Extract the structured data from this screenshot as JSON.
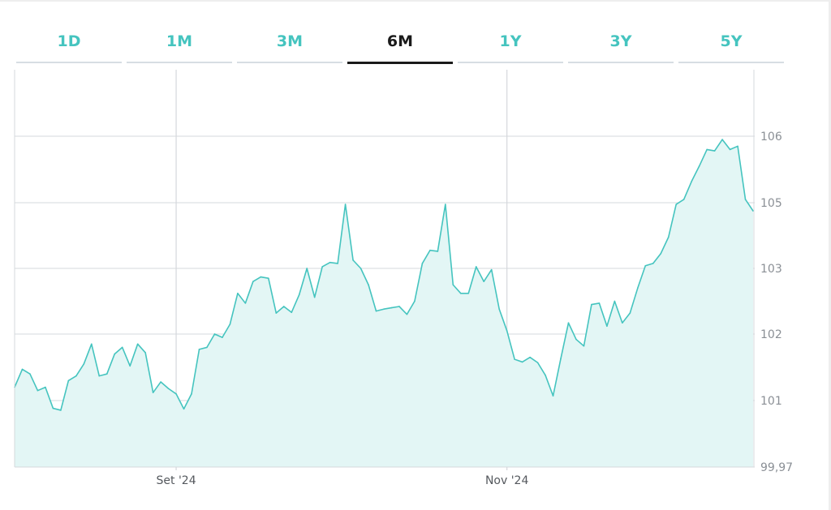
{
  "range_tabs": [
    {
      "label": "1D",
      "active": false
    },
    {
      "label": "1M",
      "active": false
    },
    {
      "label": "3M",
      "active": false
    },
    {
      "label": "6M",
      "active": true
    },
    {
      "label": "1Y",
      "active": false
    },
    {
      "label": "3Y",
      "active": false
    },
    {
      "label": "5Y",
      "active": false
    }
  ],
  "colors": {
    "accent": "#45c4bf",
    "line": "#45c4bf",
    "area_fill": "#e3f6f5",
    "grid": "#d5d8dc",
    "active_tab": "#1a1a1a"
  },
  "chart_data": {
    "type": "area",
    "title": "",
    "xlabel": "",
    "ylabel": "",
    "grid": true,
    "y_axis_side": "right",
    "y_ticks": [
      {
        "value": 99.97,
        "label": "99,97"
      },
      {
        "value": 101,
        "label": "101"
      },
      {
        "value": 102,
        "label": "102"
      },
      {
        "value": 103,
        "label": "103"
      },
      {
        "value": 105,
        "label": "105"
      },
      {
        "value": 106,
        "label": "106"
      }
    ],
    "x_ticks": [
      {
        "index": 21,
        "label": "Set '24"
      },
      {
        "index": 64,
        "label": "Nov '24"
      }
    ],
    "series": [
      {
        "values": [
          101.2,
          101.47,
          101.4,
          101.15,
          101.2,
          100.88,
          100.85,
          101.3,
          101.37,
          101.55,
          101.85,
          101.37,
          101.4,
          101.7,
          101.8,
          101.52,
          101.85,
          101.72,
          101.12,
          101.28,
          101.18,
          101.1,
          100.87,
          101.1,
          101.77,
          101.8,
          102,
          101.95,
          102.15,
          102.62,
          102.47,
          102.8,
          102.87,
          102.85,
          102.32,
          102.42,
          102.33,
          102.6,
          103,
          102.56,
          103.05,
          103.18,
          103.15,
          104.95,
          103.25,
          103,
          102.75,
          102.35,
          102.38,
          102.4,
          102.42,
          102.3,
          102.5,
          103.15,
          103.55,
          103.52,
          104.95,
          102.75,
          102.62,
          102.62,
          103.05,
          102.8,
          102.98,
          102.38,
          102.05,
          101.62,
          101.58,
          101.65,
          101.57,
          101.38,
          101.07,
          101.63,
          102.17,
          101.92,
          101.82,
          102.45,
          102.47,
          102.12,
          102.5,
          102.17,
          102.32,
          102.7,
          103.08,
          103.15,
          103.45,
          103.95,
          104.95,
          105.05,
          105.32,
          105.55,
          105.8,
          105.78,
          105.95,
          105.8,
          105.85,
          105.05,
          104.75
        ]
      }
    ]
  }
}
